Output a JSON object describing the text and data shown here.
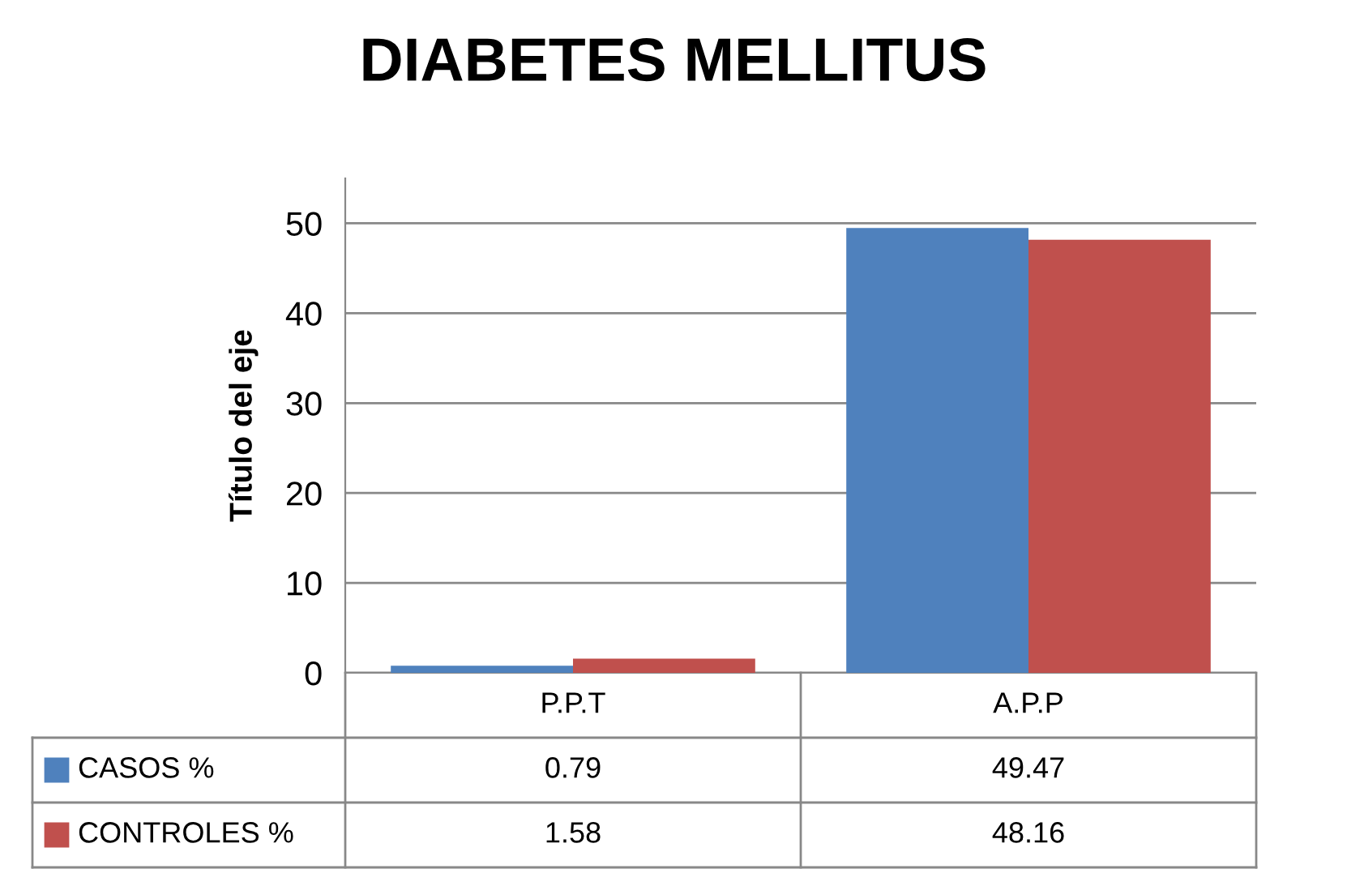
{
  "chart_data": {
    "type": "bar",
    "title": "DIABETES MELLITUS",
    "ylabel": "Título del eje",
    "categories": [
      "P.P.T",
      "A.P.P"
    ],
    "series": [
      {
        "name": "CASOS %",
        "color": "#4f81bd",
        "values": [
          0.79,
          49.47
        ]
      },
      {
        "name": "CONTROLES %",
        "color": "#c0504d",
        "values": [
          1.58,
          48.16
        ]
      }
    ],
    "ylim": [
      0,
      55
    ],
    "yticks": [
      0,
      10,
      20,
      30,
      40,
      50
    ],
    "grid": "y",
    "legend": "bottom left",
    "data_labels": true
  }
}
